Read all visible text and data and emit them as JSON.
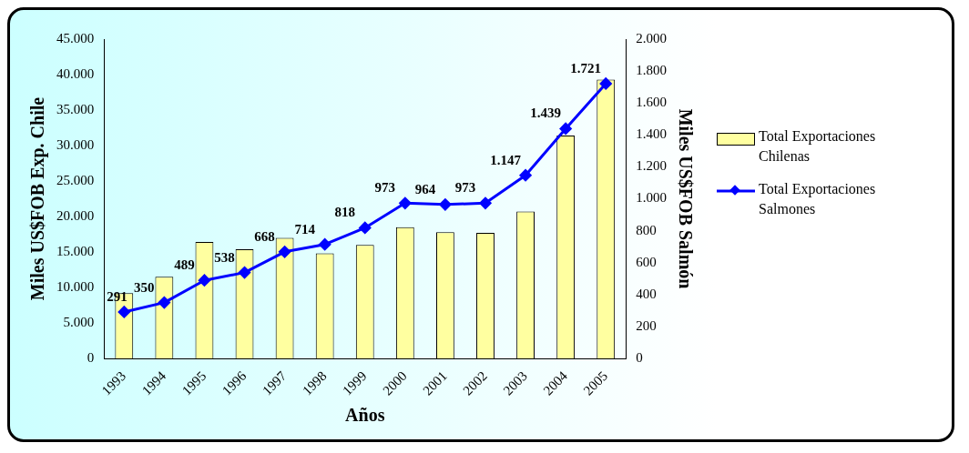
{
  "chart_data": {
    "type": "bar",
    "xlabel": "Años",
    "ylabel": "Miles US$FOB Exp. Chile",
    "y2label": "Miles US$FOB Salmón",
    "categories": [
      "1993",
      "1994",
      "1995",
      "1996",
      "1997",
      "1998",
      "1999",
      "2000",
      "2001",
      "2002",
      "2003",
      "2004",
      "2005"
    ],
    "series": [
      {
        "name": "Total Exportaciones Chilenas",
        "color": "#ffffa0",
        "values": [
          9200,
          11500,
          16400,
          15400,
          17000,
          14800,
          16000,
          18500,
          17800,
          17700,
          20700,
          31400,
          39300
        ]
      },
      {
        "name": "Total Exportaciones Salmones",
        "type": "line",
        "axis": "y2",
        "color": "#0000ff",
        "values": [
          291,
          350,
          489,
          538,
          668,
          714,
          818,
          973,
          964,
          973,
          1147,
          1439,
          1721
        ],
        "value_labels": [
          "291",
          "350",
          "489",
          "538",
          "668",
          "714",
          "818",
          "973",
          "964",
          "973",
          "1.147",
          "1.439",
          "1.721"
        ]
      }
    ],
    "ylim": [
      0,
      45000
    ],
    "yticks": [
      {
        "value": 0,
        "label": "0"
      },
      {
        "value": 5000,
        "label": "5.000"
      },
      {
        "value": 10000,
        "label": "10.000"
      },
      {
        "value": 15000,
        "label": "15.000"
      },
      {
        "value": 20000,
        "label": "20.000"
      },
      {
        "value": 25000,
        "label": "25.000"
      },
      {
        "value": 30000,
        "label": "30.000"
      },
      {
        "value": 35000,
        "label": "35.000"
      },
      {
        "value": 40000,
        "label": "40.000"
      },
      {
        "value": 45000,
        "label": "45.000"
      }
    ],
    "y2lim": [
      0,
      2000
    ],
    "y2ticks": [
      {
        "value": 0,
        "label": "0"
      },
      {
        "value": 200,
        "label": "200"
      },
      {
        "value": 400,
        "label": "400"
      },
      {
        "value": 600,
        "label": "600"
      },
      {
        "value": 800,
        "label": "800"
      },
      {
        "value": 1000,
        "label": "1.000"
      },
      {
        "value": 1200,
        "label": "1.200"
      },
      {
        "value": 1400,
        "label": "1.400"
      },
      {
        "value": 1600,
        "label": "1.600"
      },
      {
        "value": 1800,
        "label": "1.800"
      },
      {
        "value": 2000,
        "label": "2.000"
      }
    ],
    "grid": false,
    "legend": "right",
    "marker": "diamond",
    "line_style": "solid"
  }
}
